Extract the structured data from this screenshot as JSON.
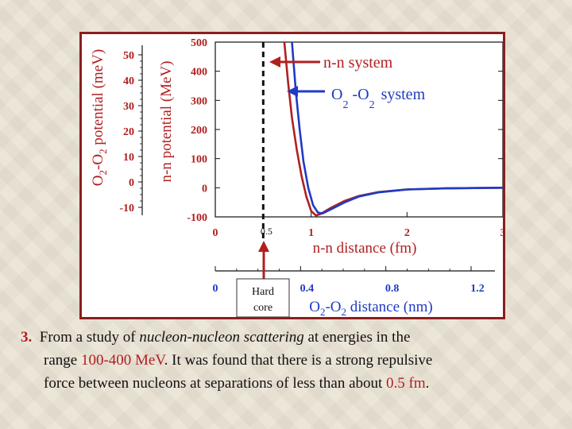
{
  "caption": {
    "number": "3.",
    "t1": "From a study of ",
    "t2": "nucleon-nucleon scattering",
    "t3": " at energies in the",
    "t4": "range ",
    "t5": "100-400 MeV",
    "t6": ". It was found that there is a strong repulsive",
    "t7": "force between nucleons at separations of less than about ",
    "t8": "0.5 fm",
    "t9": "."
  },
  "annotations": {
    "nn_system": "n-n system",
    "o2_system": {
      "a": "O",
      "s1": "2",
      "b": " -O",
      "s2": "2",
      "c": "system"
    },
    "half": "0.5",
    "hard_core_1": "Hard",
    "hard_core_2": "core"
  },
  "colors": {
    "nn_curve": "#b11f1f",
    "o2_curve": "#1f3bc4",
    "frame": "#8b1e1e",
    "axis_text": "#b11f1f"
  },
  "chart_data": {
    "type": "line",
    "xlabel": "n-n distance (fm)",
    "x2label": {
      "a": "O",
      "s1": "2",
      "b": "-O",
      "s2": "2",
      "c": " distance (nm)"
    },
    "ylabel": "n-n potential (MeV)",
    "y2label": {
      "a": "O",
      "s1": "2",
      "b": "-O",
      "s2": "2",
      "c": " potential (meV)"
    },
    "xlim": [
      0,
      3
    ],
    "x2lim": [
      0,
      1.2
    ],
    "ylim": [
      -100,
      500
    ],
    "y2lim": [
      -10,
      50
    ],
    "x_ticks": [
      "0",
      "1",
      "2",
      "3"
    ],
    "x2_ticks": [
      "0",
      "0.4",
      "0.8",
      "1.2"
    ],
    "y_ticks": [
      "500",
      "400",
      "300",
      "200",
      "100",
      "0",
      "-100"
    ],
    "y2_ticks": [
      "50",
      "40",
      "30",
      "20",
      "10",
      "0",
      "-10"
    ],
    "hard_core_x": 0.5,
    "grid": false,
    "series": [
      {
        "name": "n-n system",
        "x": [
          0.72,
          0.76,
          0.8,
          0.85,
          0.9,
          0.95,
          1.0,
          1.05,
          1.1,
          1.2,
          1.35,
          1.5,
          1.7,
          2.0,
          2.4,
          3.0
        ],
        "y": [
          500,
          360,
          240,
          130,
          40,
          -30,
          -80,
          -95,
          -90,
          -70,
          -45,
          -28,
          -15,
          -6,
          -2,
          0
        ]
      },
      {
        "name": "O2 -O2 system",
        "x": [
          0.8,
          0.84,
          0.88,
          0.92,
          0.97,
          1.02,
          1.07,
          1.12,
          1.2,
          1.35,
          1.5,
          1.7,
          2.0,
          2.4,
          3.0
        ],
        "y": [
          500,
          330,
          200,
          90,
          0,
          -60,
          -85,
          -88,
          -75,
          -50,
          -30,
          -16,
          -6,
          -2,
          0
        ]
      }
    ]
  }
}
